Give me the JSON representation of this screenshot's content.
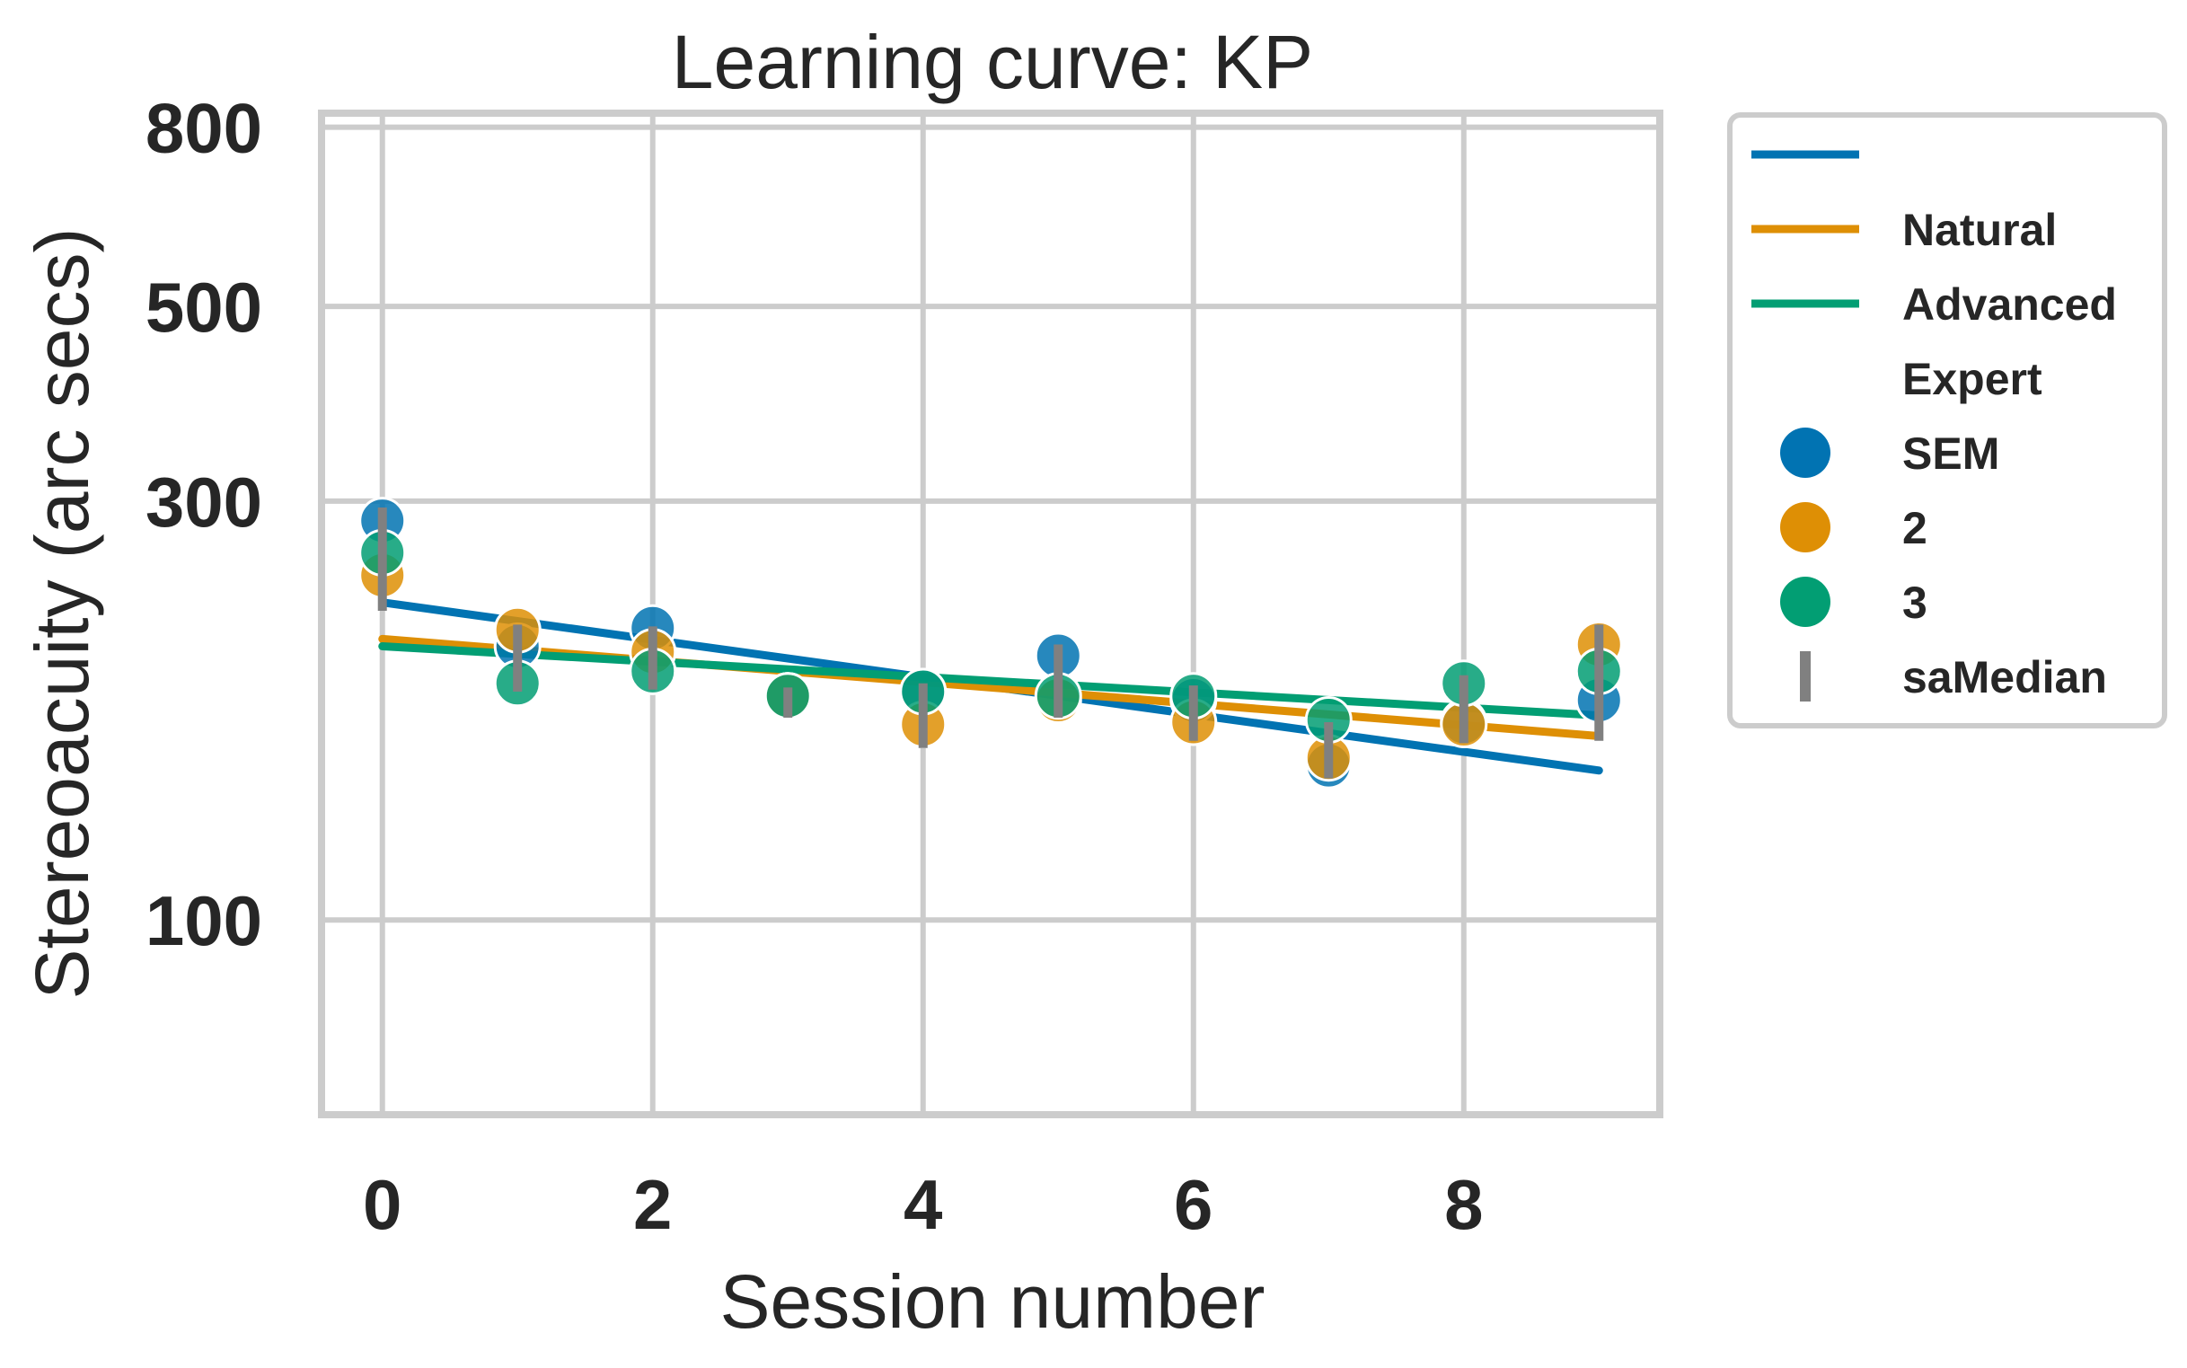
{
  "chart_data": {
    "type": "scatter",
    "title": "Learning curve: KP",
    "xlabel": "Session number",
    "ylabel": "Stereoacuity (arc secs)",
    "x_ticks": [
      0,
      2,
      4,
      6,
      8
    ],
    "x_tick_labels": [
      "0",
      "2",
      "4",
      "6",
      "8"
    ],
    "y_ticks": [
      100,
      300,
      500,
      800
    ],
    "y_tick_labels": [
      "100",
      "300",
      "500",
      "800"
    ],
    "y_scale": "log",
    "xlim": [
      -0.45,
      9.45
    ],
    "ylim": [
      60,
      830
    ],
    "grid": true,
    "legend_position": "outside-right",
    "legend": [
      {
        "kind": "line",
        "label": "",
        "color": "#0173b2"
      },
      {
        "kind": "line",
        "label": "Natural",
        "color": "#de8f05"
      },
      {
        "kind": "line",
        "label": "Advanced",
        "color": "#029e73"
      },
      {
        "kind": "header",
        "label": "Expert"
      },
      {
        "kind": "marker",
        "label": "SEM",
        "color": "#0173b2"
      },
      {
        "kind": "marker",
        "label": "2",
        "color": "#de8f05"
      },
      {
        "kind": "marker",
        "label": "3",
        "color": "#029e73"
      },
      {
        "kind": "errorbar",
        "label": "saMedian",
        "color": "#808080"
      }
    ],
    "series": [
      {
        "color": "#0173b2",
        "x": [
          0,
          1,
          2,
          3,
          4,
          5,
          6,
          7,
          8,
          9
        ],
        "y": [
          285,
          205,
          215,
          180,
          182,
          200,
          178,
          150,
          168,
          178
        ],
        "fit": {
          "x": [
            0,
            9
          ],
          "y": [
            230,
            148
          ]
        }
      },
      {
        "color": "#de8f05",
        "x": [
          0,
          1,
          2,
          3,
          4,
          5,
          6,
          7,
          8,
          9
        ],
        "y": [
          247,
          214,
          202,
          180,
          167,
          178,
          168,
          153,
          167,
          206
        ],
        "fit": {
          "x": [
            0,
            9
          ],
          "y": [
            209,
            162
          ]
        }
      },
      {
        "color": "#029e73",
        "x": [
          0,
          1,
          2,
          3,
          4,
          5,
          6,
          7,
          8,
          9
        ],
        "y": [
          262,
          186,
          192,
          180,
          182,
          180,
          180,
          169,
          186,
          192
        ],
        "fit": {
          "x": [
            0,
            9
          ],
          "y": [
            205,
            171
          ]
        }
      }
    ],
    "error_bars": {
      "color": "#808080",
      "x": [
        0,
        1,
        2,
        3,
        4,
        5,
        6,
        7,
        8,
        9
      ],
      "low": [
        225,
        182,
        183,
        170,
        157,
        170,
        160,
        145,
        159,
        160
      ],
      "high": [
        295,
        217,
        216,
        184,
        186,
        206,
        185,
        168,
        190,
        217
      ]
    }
  }
}
